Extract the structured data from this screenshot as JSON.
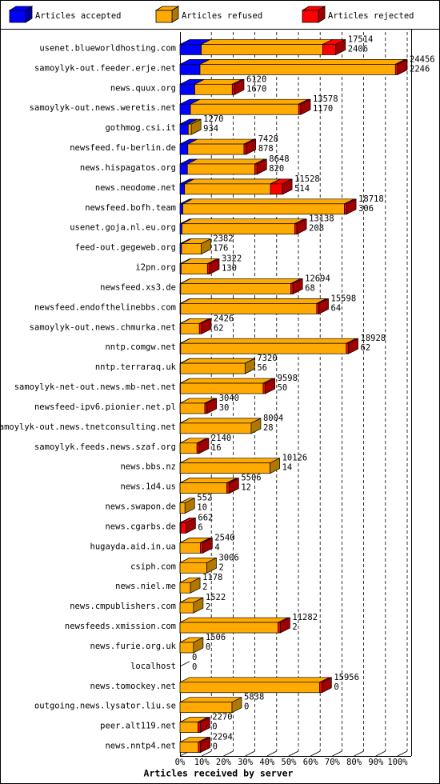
{
  "chart_data": {
    "type": "bar3d",
    "orientation": "horizontal",
    "xlabel": "Articles received by server",
    "categories": [
      "usenet.blueworldhosting.com",
      "samoylyk-out.feeder.erje.net",
      "news.quux.org",
      "samoylyk-out.news.weretis.net",
      "gothmog.csi.it",
      "newsfeed.fu-berlin.de",
      "news.hispagatos.org",
      "news.neodome.net",
      "newsfeed.bofh.team",
      "usenet.goja.nl.eu.org",
      "feed-out.gegeweb.org",
      "i2pn.org",
      "newsfeed.xs3.de",
      "newsfeed.endofthelinebbs.com",
      "samoylyk-out.news.chmurka.net",
      "nntp.comgw.net",
      "nntp.terraraq.uk",
      "samoylyk-net-out.news.mb-net.net",
      "newsfeed-ipv6.pionier.net.pl",
      "samoylyk-out.news.tnetconsulting.net",
      "samoylyk.feeds.news.szaf.org",
      "news.bbs.nz",
      "news.1d4.us",
      "news.swapon.de",
      "news.cgarbs.de",
      "hugayda.aid.in.ua",
      "csiph.com",
      "news.niel.me",
      "news.cmpublishers.com",
      "newsfeeds.xmission.com",
      "news.furie.org.uk",
      "localhost",
      "news.tomockey.net",
      "outgoing.news.lysator.liu.se",
      "peer.alt119.net",
      "news.nntp4.net"
    ],
    "series": [
      {
        "name": "Articles accepted",
        "color": "#0000ff",
        "side": "#0000a0",
        "values": [
          9.8,
          9.2,
          6.8,
          4.8,
          3.8,
          3.6,
          3.4,
          2.1,
          1.3,
          0.9,
          0.7,
          0.5,
          0.3,
          0.3,
          0.3,
          0.3,
          0.2,
          0.2,
          0.1,
          0.1,
          0.1,
          0.1,
          0.05,
          0.04,
          0.02,
          0.02,
          0.01,
          0.01,
          0.01,
          0.01,
          0.01,
          0,
          0,
          0,
          0,
          0
        ]
      },
      {
        "name": "Articles refused",
        "color": "#ffaa00",
        "side": "#b07800",
        "values": [
          55.8,
          89.8,
          17.2,
          49.7,
          1.4,
          25.8,
          31.0,
          39.5,
          74.2,
          51.8,
          9.0,
          12.1,
          50.6,
          62.5,
          8.6,
          76.1,
          29.7,
          38.0,
          11.3,
          32.6,
          7.7,
          41.3,
          21.5,
          2.26,
          0.3,
          9.4,
          12.3,
          4.8,
          6.2,
          45.1,
          6.2,
          0,
          64.2,
          23.9,
          8.3,
          8.4
        ]
      },
      {
        "name": "Articles rejected",
        "color": "#ff0000",
        "side": "#a00000",
        "values": [
          6,
          1,
          1,
          1,
          0,
          1,
          1,
          5.5,
          1,
          1,
          0,
          1,
          1,
          1,
          1,
          1,
          0,
          1,
          1,
          0,
          1,
          0,
          1,
          0,
          2.4,
          1,
          0,
          0,
          0,
          1,
          0,
          0,
          1,
          0,
          1,
          1
        ]
      }
    ],
    "totals": [
      17514,
      24456,
      6120,
      13578,
      1270,
      7428,
      8648,
      11528,
      18718,
      13138,
      2382,
      3322,
      12694,
      15598,
      2426,
      18928,
      7320,
      9598,
      3040,
      8004,
      2140,
      10126,
      5506,
      552,
      662,
      2540,
      3006,
      1178,
      1522,
      11282,
      1506,
      0,
      15956,
      5838,
      2270,
      2294
    ],
    "accepted_counts": [
      2406,
      2246,
      1670,
      1170,
      934,
      878,
      820,
      514,
      306,
      208,
      176,
      130,
      68,
      64,
      62,
      62,
      56,
      50,
      30,
      28,
      16,
      14,
      12,
      10,
      6,
      4,
      2,
      2,
      2,
      2,
      0,
      0,
      0,
      0,
      0,
      0
    ],
    "xlim": [
      0,
      100
    ],
    "xticks": [
      {
        "value": 0,
        "label": "0%"
      },
      {
        "value": 10,
        "label": "10%"
      },
      {
        "value": 20,
        "label": "20%"
      },
      {
        "value": 30,
        "label": "30%"
      },
      {
        "value": 40,
        "label": "40%"
      },
      {
        "value": 50,
        "label": "50%"
      },
      {
        "value": 60,
        "label": "60%"
      },
      {
        "value": 70,
        "label": "70%"
      },
      {
        "value": 80,
        "label": "80%"
      },
      {
        "value": 90,
        "label": "90%"
      },
      {
        "value": 100,
        "label": "100%"
      }
    ],
    "grid": true
  }
}
